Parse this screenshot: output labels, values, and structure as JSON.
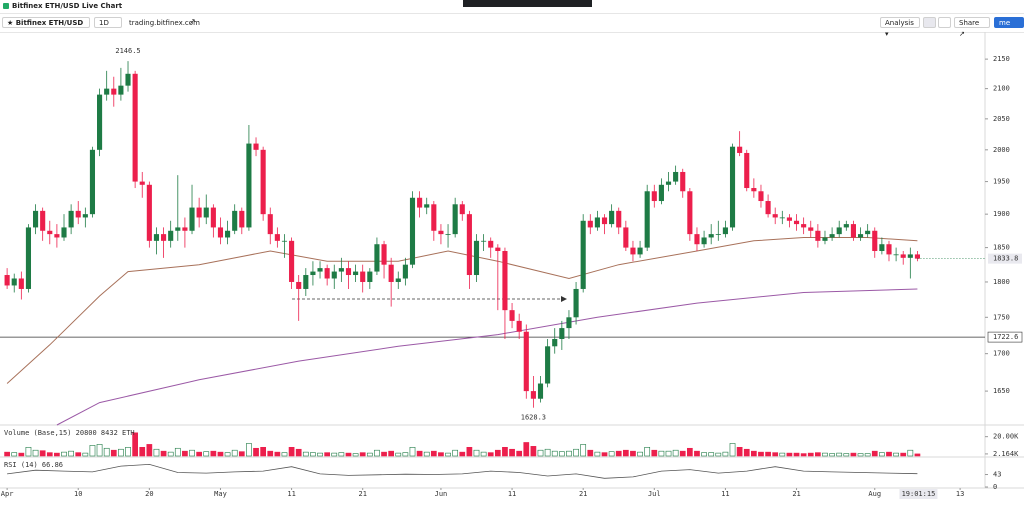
{
  "header": {
    "title": "Bitfinex ETH/USD Live Chart"
  },
  "toolbar": {
    "symbol": "Bitfinex ETH/USD",
    "interval": "1D",
    "link": "trading.bitfinex.com",
    "analysis": "Analysis",
    "share": "Share",
    "account": "me"
  },
  "chart_data": {
    "type": "candlestick",
    "up_color": "#1e7b45",
    "down_color": "#ec1f4c",
    "log": true,
    "grid": false,
    "xlim": [
      -1,
      137.5
    ],
    "xticks": [
      {
        "value": 0,
        "label": "Apr"
      },
      10,
      20,
      {
        "value": 30,
        "label": "May"
      },
      {
        "value": 40,
        "label": "11"
      },
      {
        "value": 50,
        "label": "21"
      },
      {
        "value": 61,
        "label": "Jun"
      },
      {
        "value": 71,
        "label": "11"
      },
      {
        "value": 81,
        "label": "21"
      },
      {
        "value": 91,
        "label": "Jul"
      },
      {
        "value": 101,
        "label": "11"
      },
      {
        "value": 111,
        "label": "21"
      },
      {
        "value": 122,
        "label": "Aug"
      },
      {
        "value": 134,
        "label": "13"
      }
    ],
    "countdown": "19:01:15",
    "ylim": [
      1606,
      2197
    ],
    "yticks": [
      1650,
      1700,
      1750,
      1800,
      1850,
      1900,
      1950,
      2000,
      2050,
      2100,
      2150
    ],
    "hlines": [
      {
        "value": 1722.6,
        "color": "#333333"
      }
    ],
    "ohlc": [
      [
        1810,
        1820,
        1790,
        1795
      ],
      [
        1795,
        1812,
        1785,
        1805
      ],
      [
        1805,
        1815,
        1775,
        1790
      ],
      [
        1790,
        1885,
        1785,
        1880
      ],
      [
        1880,
        1915,
        1870,
        1905
      ],
      [
        1905,
        1910,
        1860,
        1875
      ],
      [
        1875,
        1890,
        1855,
        1870
      ],
      [
        1870,
        1885,
        1850,
        1865
      ],
      [
        1865,
        1900,
        1860,
        1880
      ],
      [
        1880,
        1915,
        1870,
        1905
      ],
      [
        1905,
        1920,
        1885,
        1895
      ],
      [
        1895,
        1910,
        1880,
        1900
      ],
      [
        1900,
        2005,
        1895,
        2000
      ],
      [
        2000,
        2100,
        1990,
        2090
      ],
      [
        2090,
        2130,
        2080,
        2100
      ],
      [
        2100,
        2120,
        2070,
        2090
      ],
      [
        2090,
        2135,
        2080,
        2105
      ],
      [
        2105,
        2146.5,
        2095,
        2125
      ],
      [
        2125,
        2130,
        1940,
        1950
      ],
      [
        1950,
        1965,
        1925,
        1945
      ],
      [
        1945,
        1950,
        1850,
        1860
      ],
      [
        1860,
        1880,
        1840,
        1870
      ],
      [
        1870,
        1880,
        1835,
        1860
      ],
      [
        1860,
        1890,
        1850,
        1875
      ],
      [
        1875,
        1960,
        1860,
        1880
      ],
      [
        1880,
        1895,
        1850,
        1875
      ],
      [
        1875,
        1945,
        1870,
        1910
      ],
      [
        1910,
        1925,
        1880,
        1895
      ],
      [
        1895,
        1930,
        1885,
        1910
      ],
      [
        1910,
        1915,
        1865,
        1880
      ],
      [
        1880,
        1895,
        1855,
        1865
      ],
      [
        1865,
        1890,
        1855,
        1875
      ],
      [
        1875,
        1915,
        1870,
        1905
      ],
      [
        1905,
        1910,
        1870,
        1880
      ],
      [
        1880,
        2040,
        1875,
        2010
      ],
      [
        2010,
        2020,
        1990,
        2000
      ],
      [
        2000,
        2005,
        1890,
        1900
      ],
      [
        1900,
        1910,
        1855,
        1870
      ],
      [
        1870,
        1880,
        1850,
        1860
      ],
      [
        1860,
        1870,
        1835,
        1860
      ],
      [
        1860,
        1865,
        1790,
        1800
      ],
      [
        1800,
        1810,
        1745,
        1790
      ],
      [
        1790,
        1820,
        1780,
        1810
      ],
      [
        1810,
        1830,
        1795,
        1815
      ],
      [
        1815,
        1830,
        1805,
        1820
      ],
      [
        1820,
        1825,
        1795,
        1805
      ],
      [
        1805,
        1825,
        1790,
        1815
      ],
      [
        1815,
        1835,
        1800,
        1820
      ],
      [
        1820,
        1830,
        1790,
        1810
      ],
      [
        1810,
        1825,
        1800,
        1815
      ],
      [
        1815,
        1825,
        1785,
        1800
      ],
      [
        1800,
        1820,
        1790,
        1815
      ],
      [
        1815,
        1865,
        1810,
        1855
      ],
      [
        1855,
        1860,
        1805,
        1825
      ],
      [
        1825,
        1835,
        1765,
        1800
      ],
      [
        1800,
        1815,
        1790,
        1805
      ],
      [
        1805,
        1835,
        1795,
        1825
      ],
      [
        1825,
        1935,
        1820,
        1925
      ],
      [
        1925,
        1935,
        1895,
        1910
      ],
      [
        1910,
        1925,
        1900,
        1915
      ],
      [
        1915,
        1920,
        1860,
        1875
      ],
      [
        1875,
        1885,
        1855,
        1870
      ],
      [
        1870,
        1885,
        1850,
        1870
      ],
      [
        1870,
        1925,
        1865,
        1915
      ],
      [
        1915,
        1920,
        1890,
        1900
      ],
      [
        1900,
        1905,
        1790,
        1810
      ],
      [
        1810,
        1870,
        1800,
        1860
      ],
      [
        1860,
        1870,
        1845,
        1860
      ],
      [
        1860,
        1865,
        1835,
        1850
      ],
      [
        1850,
        1855,
        1760,
        1845
      ],
      [
        1845,
        1850,
        1720,
        1760
      ],
      [
        1760,
        1770,
        1735,
        1745
      ],
      [
        1745,
        1755,
        1720,
        1730
      ],
      [
        1730,
        1740,
        1640,
        1650
      ],
      [
        1650,
        1670,
        1628.3,
        1640
      ],
      [
        1640,
        1670,
        1635,
        1660
      ],
      [
        1660,
        1720,
        1655,
        1710
      ],
      [
        1710,
        1735,
        1700,
        1720
      ],
      [
        1720,
        1745,
        1705,
        1735
      ],
      [
        1735,
        1760,
        1720,
        1750
      ],
      [
        1750,
        1800,
        1740,
        1790
      ],
      [
        1790,
        1900,
        1785,
        1890
      ],
      [
        1890,
        1900,
        1870,
        1880
      ],
      [
        1880,
        1905,
        1875,
        1895
      ],
      [
        1895,
        1900,
        1870,
        1885
      ],
      [
        1885,
        1915,
        1880,
        1905
      ],
      [
        1905,
        1910,
        1870,
        1880
      ],
      [
        1880,
        1890,
        1845,
        1850
      ],
      [
        1850,
        1860,
        1830,
        1840
      ],
      [
        1840,
        1860,
        1835,
        1850
      ],
      [
        1850,
        1945,
        1845,
        1935
      ],
      [
        1935,
        1945,
        1910,
        1920
      ],
      [
        1920,
        1955,
        1915,
        1945
      ],
      [
        1945,
        1965,
        1935,
        1950
      ],
      [
        1950,
        1975,
        1945,
        1965
      ],
      [
        1965,
        1970,
        1925,
        1935
      ],
      [
        1935,
        1940,
        1860,
        1870
      ],
      [
        1870,
        1880,
        1845,
        1855
      ],
      [
        1855,
        1875,
        1850,
        1865
      ],
      [
        1865,
        1885,
        1855,
        1870
      ],
      [
        1870,
        1890,
        1860,
        1870
      ],
      [
        1870,
        1890,
        1865,
        1880
      ],
      [
        1880,
        2010,
        1875,
        2005
      ],
      [
        2005,
        2030,
        1990,
        1995
      ],
      [
        1995,
        2000,
        1935,
        1940
      ],
      [
        1940,
        1955,
        1925,
        1935
      ],
      [
        1935,
        1945,
        1910,
        1920
      ],
      [
        1920,
        1930,
        1895,
        1900
      ],
      [
        1900,
        1910,
        1885,
        1895
      ],
      [
        1895,
        1905,
        1885,
        1895
      ],
      [
        1895,
        1900,
        1880,
        1890
      ],
      [
        1890,
        1900,
        1875,
        1885
      ],
      [
        1885,
        1895,
        1870,
        1880
      ],
      [
        1880,
        1890,
        1865,
        1875
      ],
      [
        1875,
        1885,
        1850,
        1860
      ],
      [
        1860,
        1875,
        1855,
        1865
      ],
      [
        1865,
        1880,
        1860,
        1870
      ],
      [
        1870,
        1890,
        1865,
        1880
      ],
      [
        1880,
        1890,
        1875,
        1885
      ],
      [
        1885,
        1890,
        1860,
        1865
      ],
      [
        1865,
        1880,
        1860,
        1870
      ],
      [
        1870,
        1885,
        1865,
        1875
      ],
      [
        1875,
        1880,
        1835,
        1845
      ],
      [
        1845,
        1865,
        1840,
        1855
      ],
      [
        1855,
        1860,
        1830,
        1840
      ],
      [
        1840,
        1850,
        1830,
        1840
      ],
      [
        1840,
        1845,
        1825,
        1835
      ],
      [
        1835,
        1850,
        1805,
        1840
      ],
      [
        1840,
        1845,
        1830,
        1833.8
      ]
    ],
    "lines": [
      {
        "color": "#a8715a",
        "x": [
          0,
          6,
          13,
          17,
          27,
          37,
          45,
          55,
          62,
          69,
          79,
          86,
          97,
          105,
          112,
          121,
          128
        ],
        "values": [
          1660,
          1712,
          1780,
          1815,
          1825,
          1845,
          1830,
          1830,
          1845,
          1830,
          1805,
          1825,
          1845,
          1860,
          1865,
          1865,
          1860
        ]
      },
      {
        "color": "#9b59a6",
        "x": [
          7,
          13,
          27,
          41,
          55,
          69,
          83,
          97,
          112,
          128
        ],
        "values": [
          1606,
          1635,
          1665,
          1690,
          1710,
          1726,
          1750,
          1770,
          1785,
          1790
        ]
      }
    ],
    "volume": {
      "title": "Volume (Base,15) 20800 8432 ETH",
      "ylim": [
        0,
        30000
      ],
      "yticks": [
        {
          "value": 20000,
          "label": "20.00K"
        },
        {
          "value": 2164,
          "label": "2.164K"
        }
      ],
      "values": [
        4000,
        3500,
        3000,
        9000,
        6000,
        5500,
        3500,
        3000,
        4000,
        5000,
        3500,
        3000,
        11000,
        12000,
        8000,
        6000,
        7000,
        9000,
        24000,
        9000,
        12000,
        7000,
        5000,
        4000,
        8000,
        5000,
        6000,
        4000,
        4500,
        5000,
        4000,
        3500,
        6000,
        4500,
        13000,
        8000,
        9000,
        5000,
        4000,
        3500,
        9000,
        7000,
        4000,
        3500,
        3000,
        3500,
        3000,
        3500,
        3000,
        2500,
        3500,
        3000,
        6000,
        4000,
        5000,
        3000,
        3500,
        9000,
        5000,
        4000,
        5000,
        3500,
        3000,
        6000,
        4000,
        9000,
        6000,
        4000,
        3500,
        6000,
        9000,
        7000,
        5000,
        14000,
        10000,
        6000,
        7000,
        5000,
        4500,
        5000,
        7000,
        12000,
        6000,
        4000,
        3500,
        4500,
        5000,
        6000,
        5000,
        4000,
        9000,
        6000,
        5000,
        5000,
        6000,
        5000,
        8000,
        5000,
        3500,
        3500,
        3000,
        4000,
        13000,
        9000,
        7000,
        5000,
        4000,
        4000,
        3500,
        3000,
        3000,
        3000,
        2500,
        3000,
        3500,
        3000,
        2500,
        3000,
        2500,
        3000,
        2500,
        2500,
        5000,
        3500,
        4000,
        3000,
        3000,
        6000,
        2164
      ]
    },
    "rsi": {
      "title": "RSI (14) 66.86",
      "color": "#555555",
      "ylim": [
        0,
        100
      ],
      "yticks": [
        0,
        43
      ],
      "x": [
        0,
        4,
        8,
        12,
        16,
        20,
        24,
        28,
        32,
        36,
        40,
        44,
        48,
        52,
        56,
        60,
        64,
        68,
        72,
        76,
        80,
        84,
        88,
        92,
        96,
        100,
        104,
        108,
        112,
        116,
        120,
        124,
        128
      ],
      "values": [
        45,
        58,
        55,
        52,
        72,
        78,
        50,
        48,
        52,
        55,
        70,
        45,
        40,
        42,
        44,
        43,
        45,
        55,
        50,
        38,
        45,
        30,
        35,
        55,
        60,
        48,
        55,
        70,
        55,
        52,
        50,
        48,
        46
      ]
    }
  }
}
